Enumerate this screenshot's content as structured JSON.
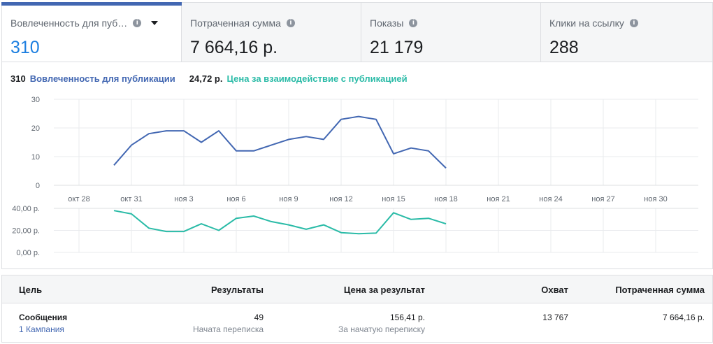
{
  "metrics": [
    {
      "label": "Вовлеченность для пуб…",
      "value": "310",
      "active": true,
      "info_icon": "info-icon",
      "dropdown_icon": "caret-down-icon"
    },
    {
      "label": "Потраченная сумма",
      "value": "7 664,16 р.",
      "active": false,
      "info_icon": "info-icon"
    },
    {
      "label": "Показы",
      "value": "21 179",
      "active": false,
      "info_icon": "info-icon"
    },
    {
      "label": "Клики на ссылку",
      "value": "288",
      "active": false,
      "info_icon": "info-icon"
    }
  ],
  "info_glyph": "i",
  "legend": {
    "primary_value": "310",
    "primary_label": "Вовлеченность для публикации",
    "secondary_value": "24,72 р.",
    "secondary_label": "Цена за взаимодействие с публикацией"
  },
  "colors": {
    "accent": "#4267b2",
    "primary_line": "#4267b2",
    "secondary_line": "#2abba7",
    "active_value": "#1d7fe0"
  },
  "chart_data": [
    {
      "type": "line",
      "series": [
        {
          "name": "Вовлеченность для публикации",
          "values": [
            7,
            14,
            18,
            19,
            19,
            15,
            19,
            12,
            12,
            14,
            16,
            17,
            16,
            23,
            24,
            23,
            11,
            13,
            12,
            6
          ]
        }
      ],
      "x": [
        "окт 29",
        "окт 30",
        "окт 31",
        "ноя 1",
        "ноя 2",
        "ноя 3",
        "ноя 4",
        "ноя 5",
        "ноя 6",
        "ноя 7",
        "ноя 8",
        "ноя 9",
        "ноя 10",
        "ноя 11",
        "ноя 12",
        "ноя 13",
        "ноя 14",
        "ноя 15",
        "ноя 16",
        "ноя 17"
      ],
      "x_tick_labels": [
        "окт 28",
        "окт 31",
        "ноя 3",
        "ноя 6",
        "ноя 9",
        "ноя 12",
        "ноя 15",
        "ноя 18",
        "ноя 21",
        "ноя 24",
        "ноя 27",
        "ноя 30"
      ],
      "y_tick_labels": [
        "30",
        "20",
        "10",
        "0"
      ],
      "ylim": [
        0,
        30
      ],
      "grid": true
    },
    {
      "type": "line",
      "series": [
        {
          "name": "Цена за взаимодействие с публикацией",
          "values": [
            38,
            35,
            22,
            19,
            19,
            26,
            20,
            31,
            33,
            28,
            25,
            21,
            25,
            18,
            17,
            17.5,
            36,
            30,
            31,
            26
          ]
        }
      ],
      "x": [
        "окт 29",
        "окт 30",
        "окт 31",
        "ноя 1",
        "ноя 2",
        "ноя 3",
        "ноя 4",
        "ноя 5",
        "ноя 6",
        "ноя 7",
        "ноя 8",
        "ноя 9",
        "ноя 10",
        "ноя 11",
        "ноя 12",
        "ноя 13",
        "ноя 14",
        "ноя 15",
        "ноя 16",
        "ноя 17"
      ],
      "y_tick_labels": [
        "40,00 р.",
        "20,00 р.",
        "0,00 р."
      ],
      "ylim": [
        0,
        40
      ],
      "grid": true
    }
  ],
  "table": {
    "headers": {
      "goal": "Цель",
      "results": "Результаты",
      "cost": "Цена за результат",
      "reach": "Охват",
      "spent": "Потраченная сумма"
    },
    "rows": [
      {
        "goal": "Сообщения",
        "campaigns_link": "1 Кампания",
        "results": "49",
        "results_sub": "Начата переписка",
        "cost": "156,41 р.",
        "cost_sub": "За начатую переписку",
        "reach": "13 767",
        "spent": "7 664,16 р."
      }
    ]
  }
}
